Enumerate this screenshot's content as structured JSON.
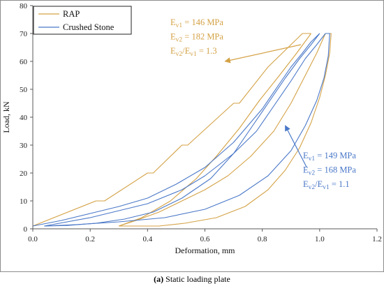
{
  "colors": {
    "rap": "#D4A246",
    "stone": "#4A78C8",
    "axis": "#595959",
    "frame": "#8c8c8c"
  },
  "caption": {
    "label": "(a)",
    "text": "Static loading plate"
  },
  "chart_data": {
    "type": "line",
    "xlabel": "Deformation, mm",
    "ylabel": "Load, kN",
    "xlim": [
      0,
      1.2
    ],
    "ylim": [
      0,
      80
    ],
    "xticks": [
      "0.0",
      "0.2",
      "0.4",
      "0.6",
      "0.8",
      "1.0",
      "1.2"
    ],
    "yticks": [
      "0",
      "10",
      "20",
      "30",
      "40",
      "50",
      "60",
      "70",
      "80"
    ],
    "grid": false,
    "legend_position": "top-left",
    "series": [
      {
        "name": "RAP",
        "color": "#D4A246",
        "segments": [
          {
            "x": [
              0.0,
              0.22,
              0.25,
              0.4,
              0.42,
              0.52,
              0.54,
              0.7,
              0.72,
              0.82,
              0.84,
              0.93,
              0.94,
              0.97
            ],
            "y": [
              1,
              10,
              10,
              20,
              20,
              30,
              30,
              45,
              45,
              58,
              60,
              69,
              70,
              70
            ]
          },
          {
            "x": [
              0.97,
              0.92,
              0.86,
              0.79,
              0.72,
              0.64,
              0.57,
              0.48,
              0.38,
              0.3
            ],
            "y": [
              70,
              63,
              55,
              46,
              36,
              26,
              18,
              10,
              4,
              1
            ]
          },
          {
            "x": [
              0.3,
              0.36,
              0.44,
              0.52,
              0.6,
              0.68,
              0.76,
              0.84,
              0.9,
              0.95,
              0.99,
              1.02
            ],
            "y": [
              1,
              3,
              6,
              10,
              14,
              19,
              26,
              35,
              45,
              55,
              63,
              70
            ]
          },
          {
            "x": [
              1.02,
              1.03,
              1.04,
              1.035,
              1.02,
              1.0,
              0.97,
              0.93,
              0.88,
              0.82,
              0.74,
              0.64,
              0.53,
              0.44,
              0.36,
              0.3
            ],
            "y": [
              70,
              70,
              70,
              63,
              55,
              47,
              38,
              29,
              21,
              14,
              8,
              4,
              2,
              1,
              1,
              1
            ]
          }
        ]
      },
      {
        "name": "Crushed Stone",
        "color": "#4A78C8",
        "segments": [
          {
            "x": [
              0.0,
              0.1,
              0.2,
              0.3,
              0.4,
              0.5,
              0.6,
              0.7,
              0.8,
              0.86,
              0.9,
              0.94,
              0.97,
              1.0
            ],
            "y": [
              1,
              3,
              5.5,
              8,
              11,
              16,
              22,
              31,
              43,
              52,
              58,
              63,
              67,
              70
            ]
          },
          {
            "x": [
              1.0,
              0.97,
              0.93,
              0.88,
              0.82,
              0.76,
              0.7,
              0.62,
              0.52,
              0.42,
              0.32,
              0.22,
              0.12,
              0.04
            ],
            "y": [
              70,
              66,
              61,
              54,
              45,
              36,
              27,
              18,
              11,
              6,
              3.5,
              2,
              1.2,
              1
            ]
          },
          {
            "x": [
              0.04,
              0.2,
              0.4,
              0.52,
              0.6,
              0.7,
              0.78,
              0.84,
              0.9,
              0.95,
              0.99,
              1.02
            ],
            "y": [
              1,
              4,
              9,
              14,
              19,
              27,
              35,
              44,
              53,
              61,
              66,
              70
            ]
          },
          {
            "x": [
              1.02,
              1.03,
              1.035,
              1.03,
              1.015,
              0.99,
              0.95,
              0.9,
              0.82,
              0.72,
              0.6,
              0.46,
              0.3,
              0.15,
              0.04
            ],
            "y": [
              70,
              70,
              70,
              62,
              54,
              46,
              37,
              28,
              19,
              12,
              7,
              4,
              2.5,
              1.5,
              1
            ]
          }
        ]
      }
    ],
    "legend": [
      "RAP",
      "Crushed Stone"
    ],
    "annotations": [
      {
        "color": "#D4A246",
        "arrow_from": [
          0.935,
          66
        ],
        "arrow_to": [
          0.67,
          60
        ],
        "lines": [
          {
            "main": "E",
            "sub": "v1",
            "rest": " =  146 MPa"
          },
          {
            "main": "E",
            "sub": "v2",
            "rest": " = 182 MPa"
          },
          {
            "main": "E",
            "sub": "v2",
            "mid": "/E",
            "sub2": "v1",
            "rest": " = 1.3"
          }
        ]
      },
      {
        "color": "#4A78C8",
        "arrow_from": [
          0.955,
          22
        ],
        "arrow_to": [
          0.88,
          37
        ],
        "lines": [
          {
            "main": "E",
            "sub": "v1",
            "rest": " =  149 MPa"
          },
          {
            "main": "E",
            "sub": "v2",
            "rest": " = 168 MPa"
          },
          {
            "main": "E",
            "sub": "v2",
            "mid": "/E",
            "sub2": "v1",
            "rest": " = 1.1"
          }
        ]
      }
    ]
  }
}
